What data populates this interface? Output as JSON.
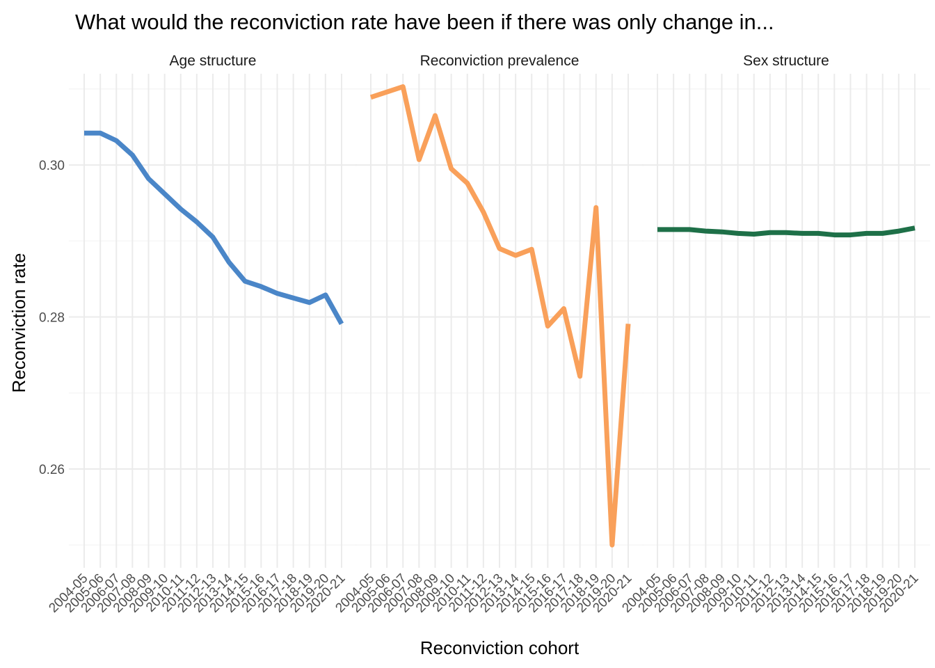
{
  "chart_data": {
    "type": "line",
    "title": "What would the reconviction rate have been if there was only change in...",
    "xlabel": "Reconviction cohort",
    "ylabel": "Reconviction rate",
    "categories": [
      "2004-05",
      "2005-06",
      "2006-07",
      "2007-08",
      "2008-09",
      "2009-10",
      "2010-11",
      "2011-12",
      "2012-13",
      "2013-14",
      "2014-15",
      "2015-16",
      "2016-17",
      "2017-18",
      "2018-19",
      "2019-20",
      "2020-21"
    ],
    "ylim": [
      0.247,
      0.312
    ],
    "y_ticks": [
      0.26,
      0.28,
      0.3
    ],
    "y_tick_labels": [
      "0.26",
      "0.28",
      "0.30"
    ],
    "grid": true,
    "legend": "none",
    "facets": [
      {
        "name": "Age structure",
        "color": "#4a86c8",
        "values": [
          0.3042,
          0.3042,
          0.3032,
          0.3013,
          0.2982,
          0.2962,
          0.2942,
          0.2925,
          0.2905,
          0.2872,
          0.2847,
          0.284,
          0.2831,
          0.2825,
          0.2819,
          0.2829,
          0.2791
        ]
      },
      {
        "name": "Reconviction prevalence",
        "color": "#f9a05a",
        "values": [
          0.3089,
          0.3096,
          0.3103,
          0.3007,
          0.3065,
          0.2995,
          0.2976,
          0.2938,
          0.289,
          0.2881,
          0.2889,
          0.2788,
          0.2811,
          0.2722,
          0.2944,
          0.25,
          0.2791
        ]
      },
      {
        "name": "Sex structure",
        "color": "#1e7048",
        "values": [
          0.2915,
          0.2915,
          0.2915,
          0.2913,
          0.2912,
          0.291,
          0.2909,
          0.2911,
          0.2911,
          0.291,
          0.291,
          0.2908,
          0.2908,
          0.291,
          0.291,
          0.2913,
          0.2917
        ]
      }
    ]
  }
}
